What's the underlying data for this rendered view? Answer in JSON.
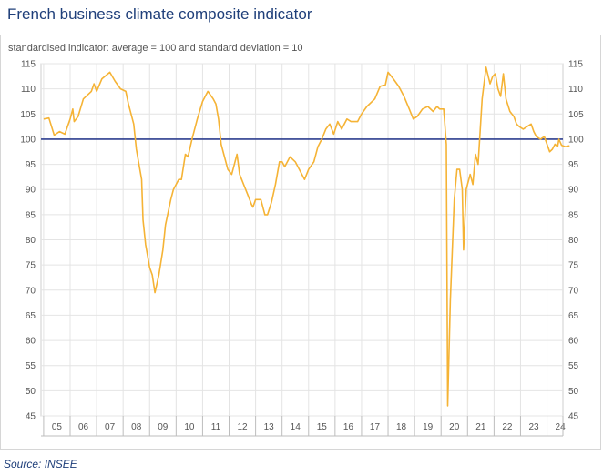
{
  "title": "French business climate composite indicator",
  "source": "Source: INSEE",
  "chart_data": {
    "type": "line",
    "subtitle": "standardised indicator: average = 100 and standard deviation = 10",
    "x_range": [
      2004.9,
      2024.6
    ],
    "ylim": [
      45,
      115
    ],
    "y_ticks": [
      45,
      50,
      55,
      60,
      65,
      70,
      75,
      80,
      85,
      90,
      95,
      100,
      105,
      110,
      115
    ],
    "x_tick_labels": [
      "05",
      "06",
      "07",
      "08",
      "09",
      "10",
      "11",
      "12",
      "13",
      "14",
      "15",
      "16",
      "17",
      "18",
      "19",
      "20",
      "21",
      "22",
      "23",
      "24"
    ],
    "reference_line": 100,
    "grid": true,
    "colors": {
      "series": "#f5b335",
      "reference": "#2e3f8f",
      "grid": "#e4e4e4",
      "title": "#1f3f7a"
    },
    "series": [
      {
        "values": [
          [
            2005.0,
            104
          ],
          [
            2005.2,
            104.2
          ],
          [
            2005.4,
            100.8
          ],
          [
            2005.6,
            101.5
          ],
          [
            2005.8,
            101
          ],
          [
            2006.0,
            104
          ],
          [
            2006.1,
            106
          ],
          [
            2006.15,
            103.5
          ],
          [
            2006.3,
            104.5
          ],
          [
            2006.5,
            108
          ],
          [
            2006.8,
            109.5
          ],
          [
            2006.9,
            111
          ],
          [
            2007.0,
            109.5
          ],
          [
            2007.2,
            112
          ],
          [
            2007.5,
            113.3
          ],
          [
            2007.7,
            111.5
          ],
          [
            2007.9,
            110
          ],
          [
            2008.1,
            109.5
          ],
          [
            2008.2,
            107
          ],
          [
            2008.4,
            103
          ],
          [
            2008.5,
            98
          ],
          [
            2008.6,
            95
          ],
          [
            2008.7,
            92
          ],
          [
            2008.75,
            84
          ],
          [
            2008.85,
            79
          ],
          [
            2009.0,
            74.5
          ],
          [
            2009.1,
            73
          ],
          [
            2009.2,
            69.5
          ],
          [
            2009.35,
            73
          ],
          [
            2009.5,
            78
          ],
          [
            2009.6,
            83
          ],
          [
            2009.8,
            88
          ],
          [
            2009.9,
            90
          ],
          [
            2010.1,
            92
          ],
          [
            2010.2,
            92
          ],
          [
            2010.35,
            97
          ],
          [
            2010.45,
            96.5
          ],
          [
            2010.6,
            100
          ],
          [
            2010.8,
            104
          ],
          [
            2011.0,
            107.5
          ],
          [
            2011.2,
            109.5
          ],
          [
            2011.4,
            108
          ],
          [
            2011.5,
            107
          ],
          [
            2011.6,
            104
          ],
          [
            2011.7,
            99
          ],
          [
            2011.8,
            97
          ],
          [
            2011.95,
            94
          ],
          [
            2012.1,
            93
          ],
          [
            2012.2,
            95
          ],
          [
            2012.3,
            97
          ],
          [
            2012.4,
            93
          ],
          [
            2012.55,
            91
          ],
          [
            2012.7,
            89
          ],
          [
            2012.85,
            87
          ],
          [
            2012.9,
            86.5
          ],
          [
            2013.0,
            88
          ],
          [
            2013.2,
            88
          ],
          [
            2013.35,
            85
          ],
          [
            2013.45,
            85
          ],
          [
            2013.6,
            87.5
          ],
          [
            2013.75,
            91
          ],
          [
            2013.9,
            95.5
          ],
          [
            2014.0,
            95.5
          ],
          [
            2014.1,
            94.5
          ],
          [
            2014.3,
            96.5
          ],
          [
            2014.5,
            95.5
          ],
          [
            2014.7,
            93.5
          ],
          [
            2014.85,
            92
          ],
          [
            2015.0,
            94
          ],
          [
            2015.2,
            95.5
          ],
          [
            2015.35,
            98.5
          ],
          [
            2015.5,
            100
          ],
          [
            2015.65,
            102
          ],
          [
            2015.8,
            103
          ],
          [
            2015.95,
            101
          ],
          [
            2016.1,
            103.5
          ],
          [
            2016.25,
            102
          ],
          [
            2016.45,
            104
          ],
          [
            2016.6,
            103.5
          ],
          [
            2016.85,
            103.5
          ],
          [
            2017.0,
            105
          ],
          [
            2017.2,
            106.5
          ],
          [
            2017.5,
            108
          ],
          [
            2017.7,
            110.5
          ],
          [
            2017.9,
            110.8
          ],
          [
            2018.0,
            113.3
          ],
          [
            2018.2,
            112
          ],
          [
            2018.4,
            110.5
          ],
          [
            2018.6,
            108.5
          ],
          [
            2018.8,
            106
          ],
          [
            2018.95,
            104
          ],
          [
            2019.1,
            104.5
          ],
          [
            2019.3,
            106
          ],
          [
            2019.5,
            106.5
          ],
          [
            2019.7,
            105.5
          ],
          [
            2019.85,
            106.5
          ],
          [
            2019.95,
            106
          ],
          [
            2020.1,
            106
          ],
          [
            2020.2,
            99
          ],
          [
            2020.25,
            47
          ],
          [
            2020.35,
            68
          ],
          [
            2020.5,
            88
          ],
          [
            2020.6,
            94
          ],
          [
            2020.7,
            94
          ],
          [
            2020.8,
            90
          ],
          [
            2020.85,
            78
          ],
          [
            2020.95,
            90
          ],
          [
            2021.1,
            93
          ],
          [
            2021.2,
            91
          ],
          [
            2021.3,
            97
          ],
          [
            2021.4,
            95
          ],
          [
            2021.55,
            108
          ],
          [
            2021.7,
            114.3
          ],
          [
            2021.85,
            111
          ],
          [
            2021.95,
            112.5
          ],
          [
            2022.05,
            113
          ],
          [
            2022.15,
            110
          ],
          [
            2022.25,
            108.5
          ],
          [
            2022.35,
            113
          ],
          [
            2022.45,
            108
          ],
          [
            2022.6,
            105.5
          ],
          [
            2022.75,
            104.5
          ],
          [
            2022.85,
            103
          ],
          [
            2022.95,
            102.5
          ],
          [
            2023.1,
            102
          ],
          [
            2023.25,
            102.5
          ],
          [
            2023.4,
            103
          ],
          [
            2023.5,
            101.5
          ],
          [
            2023.6,
            100.5
          ],
          [
            2023.75,
            100
          ],
          [
            2023.9,
            100.5
          ],
          [
            2024.1,
            97.5
          ],
          [
            2024.2,
            98
          ],
          [
            2024.3,
            99
          ],
          [
            2024.4,
            98.5
          ],
          [
            2024.45,
            100
          ],
          [
            2024.55,
            98.8
          ],
          [
            2024.7,
            98.5
          ],
          [
            2024.85,
            98.7
          ]
        ]
      }
    ]
  }
}
